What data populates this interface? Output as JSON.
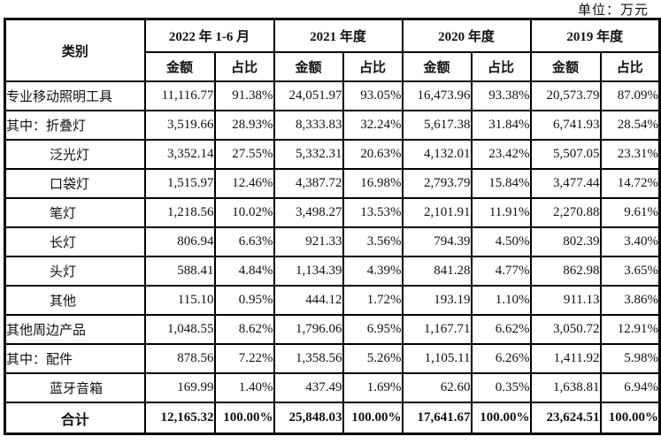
{
  "unit_label": "单位：万元",
  "table": {
    "category_header": "类别",
    "periods": [
      "2022 年 1-6 月",
      "2021 年度",
      "2020 年度",
      "2019 年度"
    ],
    "sub_headers": {
      "amount": "金额",
      "ratio": "占比"
    },
    "rows": [
      {
        "label": "专业移动照明工具",
        "indent": false,
        "total": false,
        "values": [
          "11,116.77",
          "91.38%",
          "24,051.97",
          "93.05%",
          "16,473.96",
          "93.38%",
          "20,573.79",
          "87.09%"
        ]
      },
      {
        "label": "其中：折叠灯",
        "indent": false,
        "total": false,
        "values": [
          "3,519.66",
          "28.93%",
          "8,333.83",
          "32.24%",
          "5,617.38",
          "31.84%",
          "6,741.93",
          "28.54%"
        ]
      },
      {
        "label": "泛光灯",
        "indent": true,
        "total": false,
        "values": [
          "3,352.14",
          "27.55%",
          "5,332.31",
          "20.63%",
          "4,132.01",
          "23.42%",
          "5,507.05",
          "23.31%"
        ]
      },
      {
        "label": "口袋灯",
        "indent": true,
        "total": false,
        "values": [
          "1,515.97",
          "12.46%",
          "4,387.72",
          "16.98%",
          "2,793.79",
          "15.84%",
          "3,477.44",
          "14.72%"
        ]
      },
      {
        "label": "笔灯",
        "indent": true,
        "total": false,
        "values": [
          "1,218.56",
          "10.02%",
          "3,498.27",
          "13.53%",
          "2,101.91",
          "11.91%",
          "2,270.88",
          "9.61%"
        ]
      },
      {
        "label": "长灯",
        "indent": true,
        "total": false,
        "values": [
          "806.94",
          "6.63%",
          "921.33",
          "3.56%",
          "794.39",
          "4.50%",
          "802.39",
          "3.40%"
        ]
      },
      {
        "label": "头灯",
        "indent": true,
        "total": false,
        "values": [
          "588.41",
          "4.84%",
          "1,134.39",
          "4.39%",
          "841.28",
          "4.77%",
          "862.98",
          "3.65%"
        ]
      },
      {
        "label": "其他",
        "indent": true,
        "total": false,
        "values": [
          "115.10",
          "0.95%",
          "444.12",
          "1.72%",
          "193.19",
          "1.10%",
          "911.13",
          "3.86%"
        ]
      },
      {
        "label": "其他周边产品",
        "indent": false,
        "total": false,
        "values": [
          "1,048.55",
          "8.62%",
          "1,796.06",
          "6.95%",
          "1,167.71",
          "6.62%",
          "3,050.72",
          "12.91%"
        ]
      },
      {
        "label": "其中：配件",
        "indent": false,
        "total": false,
        "values": [
          "878.56",
          "7.22%",
          "1,358.56",
          "5.26%",
          "1,105.11",
          "6.26%",
          "1,411.92",
          "5.98%"
        ]
      },
      {
        "label": "蓝牙音箱",
        "indent": true,
        "total": false,
        "values": [
          "169.99",
          "1.40%",
          "437.49",
          "1.69%",
          "62.60",
          "0.35%",
          "1,638.81",
          "6.94%"
        ]
      },
      {
        "label": "合计",
        "indent": false,
        "total": true,
        "values": [
          "12,165.32",
          "100.00%",
          "25,848.03",
          "100.00%",
          "17,641.67",
          "100.00%",
          "23,624.51",
          "100.00%"
        ]
      }
    ]
  }
}
